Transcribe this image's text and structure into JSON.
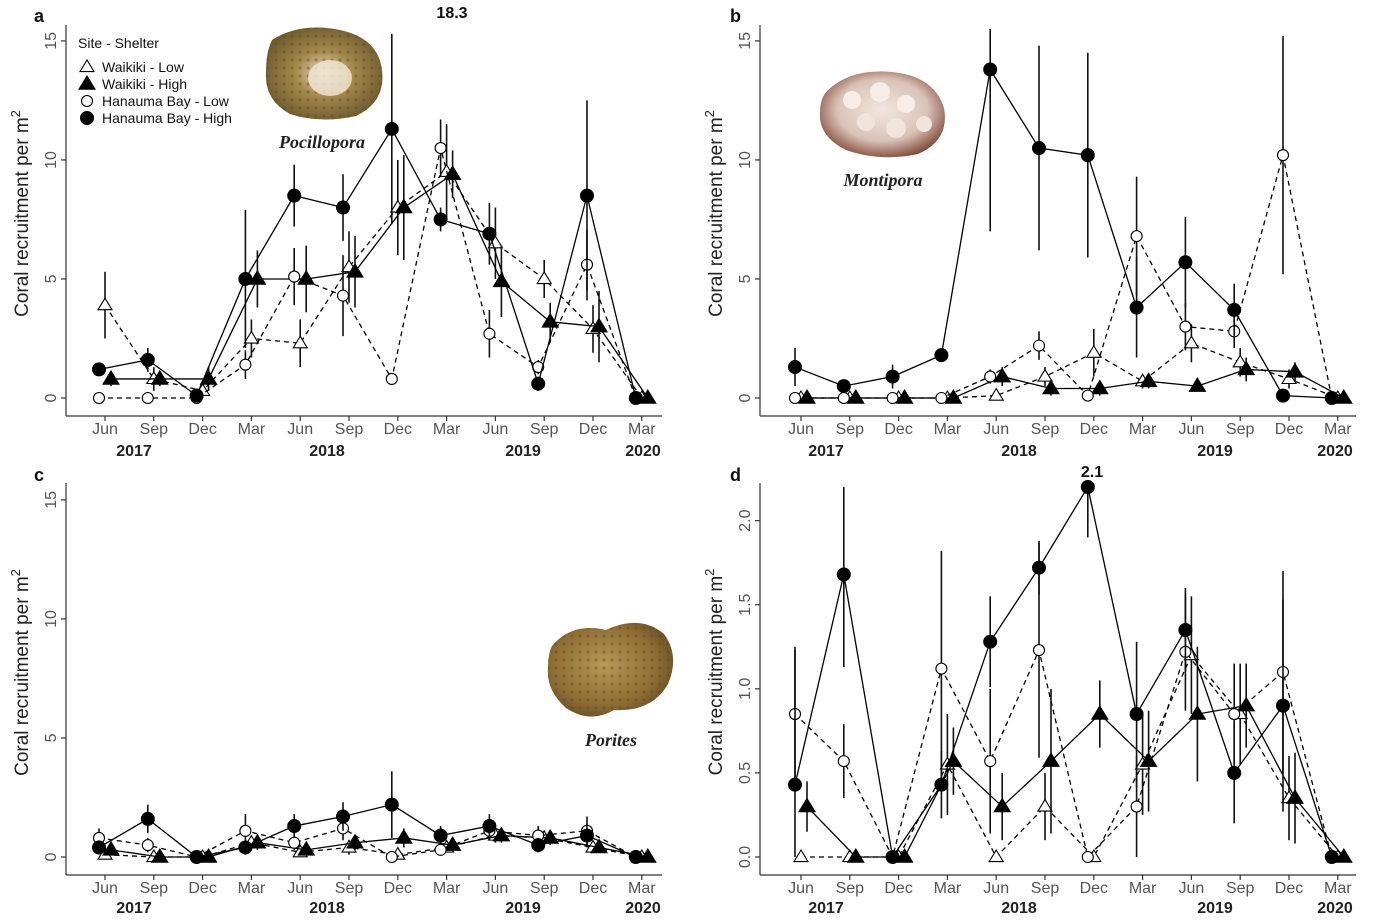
{
  "figure": {
    "ylabel": "Coral recruitment per m",
    "ylabel_sup": "2",
    "legend_title": "Site - Shelter",
    "x_tick_labels": [
      "Jun",
      "Sep",
      "Dec",
      "Mar",
      "Jun",
      "Sep",
      "Dec",
      "Mar",
      "Jun",
      "Sep",
      "Dec",
      "Mar"
    ],
    "year_labels": [
      "2017",
      "2018",
      "2019",
      "2020"
    ],
    "colors": {
      "line": "#000000",
      "axis": "#333333",
      "errorbar": "#111111"
    }
  },
  "chart_data": [
    {
      "type": "line",
      "panel": "a",
      "genus": "Pocillopora",
      "x_unit": "sampling month (Jun 2017 – Mar 2020)",
      "ylim": [
        0,
        15.5
      ],
      "yticks": [
        0,
        5,
        10,
        15
      ],
      "annotation": "18.3",
      "legend": [
        "Waikiki - Low",
        "Waikiki - High",
        "Hanauma Bay - Low",
        "Hanauma Bay - High"
      ],
      "series": [
        {
          "name": "Waikiki - Low",
          "marker": "open-triangle",
          "dash": true,
          "values": [
            3.9,
            0.8,
            0.3,
            2.5,
            2.3,
            5.5,
            8.0,
            9.5,
            6.5,
            5.0,
            2.9,
            0.0
          ],
          "err": [
            1.4,
            0.5,
            0.3,
            0.8,
            1.0,
            1.5,
            2.0,
            2.0,
            1.5,
            0.8,
            1.0,
            0.0
          ]
        },
        {
          "name": "Waikiki - High",
          "marker": "filled-triangle",
          "dash": false,
          "values": [
            0.8,
            0.8,
            0.8,
            5.0,
            5.0,
            5.3,
            8.0,
            9.4,
            4.9,
            3.2,
            3.0,
            0.0
          ],
          "err": [
            0.3,
            0.3,
            0.5,
            1.2,
            1.4,
            1.5,
            2.2,
            1.0,
            1.5,
            0.8,
            1.5,
            0.0
          ]
        },
        {
          "name": "Hanauma Bay - Low",
          "marker": "open-circle",
          "dash": true,
          "values": [
            0.0,
            0.0,
            0.0,
            1.4,
            5.1,
            4.3,
            0.8,
            10.5,
            2.7,
            1.3,
            5.6,
            0.0
          ],
          "err": [
            0.0,
            0.0,
            0.0,
            0.6,
            1.2,
            1.7,
            0.0,
            1.2,
            1.0,
            0.3,
            1.5,
            0.0
          ]
        },
        {
          "name": "Hanauma Bay - High",
          "marker": "filled-circle",
          "dash": false,
          "values": [
            1.2,
            1.6,
            0.1,
            5.0,
            8.5,
            8.0,
            11.3,
            7.5,
            6.9,
            0.6,
            8.5,
            0.0
          ],
          "err": [
            0.2,
            0.5,
            0.3,
            2.9,
            1.3,
            1.4,
            4.0,
            0.5,
            1.3,
            0.3,
            4.0,
            0.0
          ]
        }
      ]
    },
    {
      "type": "line",
      "panel": "b",
      "genus": "Montipora",
      "x_unit": "sampling month (Jun 2017 – Mar 2020)",
      "ylim": [
        0,
        15.5
      ],
      "yticks": [
        0,
        5,
        10,
        15
      ],
      "series": [
        {
          "name": "Waikiki - Low",
          "marker": "open-triangle",
          "dash": true,
          "values": [
            0.0,
            0.0,
            0.0,
            0.0,
            0.1,
            0.9,
            1.9,
            0.7,
            2.3,
            1.5,
            0.8,
            0.0
          ],
          "err": [
            0.0,
            0.0,
            0.0,
            0.0,
            0.1,
            0.4,
            1.0,
            0.3,
            0.8,
            0.6,
            0.4,
            0.0
          ]
        },
        {
          "name": "Waikiki - High",
          "marker": "filled-triangle",
          "dash": false,
          "values": [
            0.0,
            0.0,
            0.0,
            0.0,
            0.9,
            0.4,
            0.4,
            0.7,
            0.5,
            1.2,
            1.1,
            0.0
          ],
          "err": [
            0.0,
            0.0,
            0.0,
            0.0,
            0.4,
            0.3,
            0.3,
            0.3,
            0.2,
            0.5,
            0.4,
            0.0
          ]
        },
        {
          "name": "Hanauma Bay - Low",
          "marker": "open-circle",
          "dash": true,
          "values": [
            0.0,
            0.0,
            0.0,
            0.0,
            0.9,
            2.2,
            0.1,
            6.8,
            3.0,
            2.8,
            10.2,
            0.0
          ],
          "err": [
            0.0,
            0.0,
            0.0,
            0.0,
            0.3,
            0.6,
            0.1,
            2.5,
            1.0,
            0.7,
            5.0,
            0.0
          ]
        },
        {
          "name": "Hanauma Bay - High",
          "marker": "filled-circle",
          "dash": false,
          "values": [
            1.3,
            0.5,
            0.9,
            1.8,
            13.8,
            10.5,
            10.2,
            3.8,
            5.7,
            3.7,
            0.1,
            0.0
          ],
          "err": [
            0.8,
            0.2,
            0.5,
            0.2,
            6.8,
            4.3,
            4.3,
            2.1,
            1.9,
            1.1,
            0.1,
            0.0
          ]
        }
      ]
    },
    {
      "type": "line",
      "panel": "c",
      "genus": "Porites",
      "x_unit": "sampling month (Jun 2017 – Mar 2020)",
      "ylim": [
        0,
        15.5
      ],
      "yticks": [
        0,
        5,
        10,
        15
      ],
      "series": [
        {
          "name": "Waikiki - Low",
          "marker": "open-triangle",
          "dash": true,
          "values": [
            0.1,
            0.0,
            0.0,
            0.6,
            0.2,
            0.4,
            0.1,
            0.4,
            0.9,
            0.8,
            0.4,
            0.0
          ],
          "err": [
            0.1,
            0.0,
            0.0,
            0.3,
            0.1,
            0.3,
            0.1,
            0.2,
            0.3,
            0.3,
            0.2,
            0.0
          ]
        },
        {
          "name": "Waikiki - High",
          "marker": "filled-triangle",
          "dash": false,
          "values": [
            0.3,
            0.0,
            0.0,
            0.6,
            0.3,
            0.6,
            0.8,
            0.5,
            0.9,
            0.8,
            0.4,
            0.0
          ],
          "err": [
            0.2,
            0.0,
            0.0,
            0.3,
            0.2,
            0.3,
            0.4,
            0.2,
            0.3,
            0.3,
            0.2,
            0.0
          ]
        },
        {
          "name": "Hanauma Bay - Low",
          "marker": "open-circle",
          "dash": true,
          "values": [
            0.8,
            0.5,
            0.0,
            1.1,
            0.6,
            1.2,
            0.0,
            0.3,
            1.1,
            0.9,
            1.1,
            0.0
          ],
          "err": [
            0.4,
            0.3,
            0.0,
            0.7,
            0.3,
            0.5,
            0.0,
            0.2,
            0.4,
            0.4,
            0.6,
            0.0
          ]
        },
        {
          "name": "Hanauma Bay - High",
          "marker": "filled-circle",
          "dash": false,
          "values": [
            0.4,
            1.6,
            0.0,
            0.4,
            1.3,
            1.7,
            2.2,
            0.9,
            1.3,
            0.5,
            0.9,
            0.0
          ],
          "err": [
            0.3,
            0.6,
            0.0,
            0.3,
            0.5,
            0.6,
            1.4,
            0.4,
            0.5,
            0.3,
            0.5,
            0.0
          ]
        }
      ]
    },
    {
      "type": "line",
      "panel": "d",
      "x_unit": "sampling month (Jun 2017 – Mar 2020)",
      "ylim": [
        0,
        2.2
      ],
      "yticks": [
        0.0,
        0.5,
        1.0,
        1.5,
        2.0
      ],
      "annotation": "2.1",
      "series": [
        {
          "name": "Waikiki - Low",
          "marker": "open-triangle",
          "dash": true,
          "values": [
            0.0,
            0.0,
            0.0,
            0.55,
            0.0,
            0.3,
            0.0,
            0.55,
            1.2,
            0.85,
            0.35,
            0.0
          ],
          "err": [
            0.0,
            0.0,
            0.0,
            0.3,
            0.0,
            0.2,
            0.0,
            0.3,
            0.35,
            0.3,
            0.25,
            0.0
          ]
        },
        {
          "name": "Waikiki - High",
          "marker": "filled-triangle",
          "dash": false,
          "values": [
            0.3,
            0.0,
            0.0,
            0.57,
            0.3,
            0.57,
            0.85,
            0.57,
            0.85,
            0.9,
            0.35,
            0.0
          ],
          "err": [
            0.15,
            0.0,
            0.0,
            0.2,
            0.2,
            0.43,
            0.2,
            0.3,
            0.4,
            0.25,
            0.27,
            0.0
          ]
        },
        {
          "name": "Hanauma Bay - Low",
          "marker": "open-circle",
          "dash": true,
          "values": [
            0.85,
            0.57,
            0.0,
            1.12,
            0.57,
            1.23,
            0.0,
            0.3,
            1.22,
            0.85,
            1.1,
            0.0
          ],
          "err": [
            0.4,
            0.22,
            0.0,
            0.7,
            0.43,
            0.64,
            0.0,
            0.3,
            0.35,
            0.3,
            0.6,
            0.0
          ]
        },
        {
          "name": "Hanauma Bay - High",
          "marker": "filled-circle",
          "dash": false,
          "values": [
            0.43,
            1.68,
            0.0,
            0.43,
            1.28,
            1.72,
            2.2,
            0.85,
            1.35,
            0.5,
            0.9,
            0.0
          ],
          "err": [
            0.8,
            0.55,
            0.0,
            0.2,
            0.27,
            0.16,
            0.3,
            0.43,
            0.25,
            0.3,
            0.63,
            0.0
          ]
        }
      ]
    }
  ]
}
